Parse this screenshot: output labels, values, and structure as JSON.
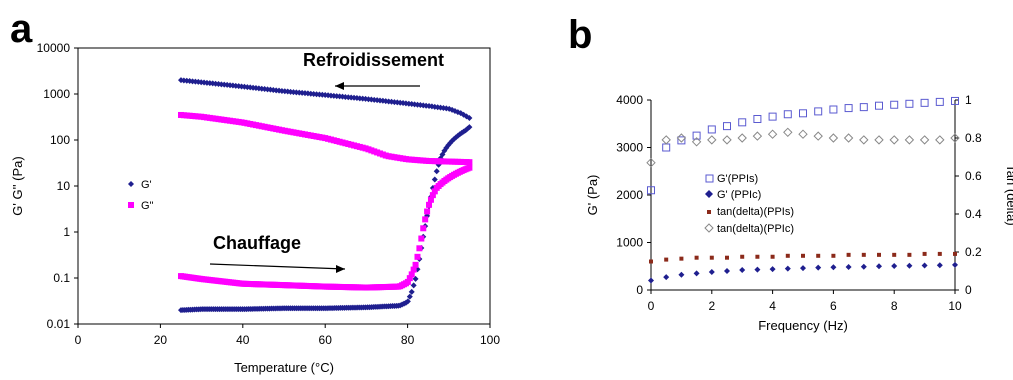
{
  "panel_a_letter": "a",
  "panel_b_letter": "b",
  "chart_data": [
    {
      "type": "scatter",
      "panel": "a",
      "xlabel": "Temperature (°C)",
      "ylabel": "G' G'' (Pa)",
      "xlim": [
        0,
        100
      ],
      "ylim": [
        0.01,
        10000
      ],
      "yscale": "log",
      "xticks": [
        "0",
        "20",
        "40",
        "60",
        "80",
        "100"
      ],
      "yticks": [
        "0.01",
        "0.1",
        "1",
        "10",
        "100",
        "1000",
        "10000"
      ],
      "legend_position": "left",
      "annotations": {
        "cooling": "Refroidissement",
        "heating": "Chauffage"
      },
      "series": [
        {
          "name": "G'",
          "color": "#1f1f8f",
          "marker": "diamond",
          "cooling": {
            "x": [
              25,
              30,
              40,
              50,
              60,
              70,
              80,
              85,
              90,
              93,
              95
            ],
            "y": [
              2000,
              1800,
              1450,
              1150,
              950,
              780,
              620,
              550,
              480,
              380,
              300
            ]
          },
          "heating": {
            "x": [
              25,
              30,
              40,
              50,
              60,
              70,
              78,
              80,
              81,
              82,
              83,
              84,
              85,
              86,
              87,
              88,
              89,
              90,
              91,
              92,
              93,
              94,
              95
            ],
            "y": [
              0.02,
              0.021,
              0.021,
              0.022,
              0.022,
              0.023,
              0.025,
              0.03,
              0.05,
              0.1,
              0.3,
              1,
              3,
              8,
              20,
              40,
              60,
              80,
              100,
              120,
              140,
              160,
              190
            ]
          }
        },
        {
          "name": "G\"",
          "color": "#ff00ff",
          "marker": "square",
          "cooling": {
            "x": [
              25,
              30,
              40,
              50,
              60,
              70,
              75,
              80,
              85,
              90,
              95
            ],
            "y": [
              350,
              320,
              240,
              160,
              110,
              65,
              45,
              38,
              35,
              34,
              33
            ]
          },
          "heating": {
            "x": [
              25,
              30,
              40,
              50,
              60,
              70,
              78,
              80,
              81,
              82,
              83,
              84,
              85,
              86,
              87,
              88,
              89,
              90,
              91,
              92,
              93,
              94,
              95
            ],
            "y": [
              0.11,
              0.095,
              0.075,
              0.07,
              0.065,
              0.062,
              0.065,
              0.08,
              0.12,
              0.2,
              0.5,
              1.5,
              3.5,
              6,
              9,
              11,
              13,
              15,
              17,
              19,
              21,
              23,
              25
            ]
          }
        }
      ]
    },
    {
      "type": "scatter",
      "panel": "b",
      "xlabel": "Frequency (Hz)",
      "ylabel": "G' (Pa)",
      "y2label": "Tan (delta)",
      "xlim": [
        0,
        10
      ],
      "ylim": [
        0,
        4000
      ],
      "y2lim": [
        0,
        1
      ],
      "xticks": [
        "0",
        "2",
        "4",
        "6",
        "8",
        "10"
      ],
      "yticks": [
        "0",
        "1000",
        "2000",
        "3000",
        "4000"
      ],
      "y2ticks": [
        "0",
        "0.2",
        "0.4",
        "0.6",
        "0.8",
        "1"
      ],
      "legend_position": "center-left",
      "series": [
        {
          "name": "G'(PPIs)",
          "axis": "left",
          "color": "#5a5ad0",
          "marker": "square-open",
          "x": [
            0,
            0.5,
            1,
            1.5,
            2,
            2.5,
            3,
            3.5,
            4,
            4.5,
            5,
            5.5,
            6,
            6.5,
            7,
            7.5,
            8,
            8.5,
            9,
            9.5,
            10
          ],
          "y": [
            2100,
            3000,
            3150,
            3250,
            3380,
            3450,
            3530,
            3600,
            3650,
            3700,
            3720,
            3760,
            3800,
            3830,
            3850,
            3880,
            3900,
            3920,
            3940,
            3960,
            3980
          ]
        },
        {
          "name": "G' (PPIc)",
          "axis": "left",
          "color": "#1f1f8f",
          "marker": "diamond",
          "x": [
            0,
            0.5,
            1,
            1.5,
            2,
            2.5,
            3,
            3.5,
            4,
            4.5,
            5,
            5.5,
            6,
            6.5,
            7,
            7.5,
            8,
            8.5,
            9,
            9.5,
            10
          ],
          "y": [
            200,
            270,
            320,
            350,
            380,
            400,
            420,
            430,
            440,
            450,
            460,
            470,
            480,
            485,
            490,
            500,
            505,
            510,
            515,
            520,
            530
          ]
        },
        {
          "name": "tan(delta)(PPIs)",
          "axis": "right",
          "color": "#8b2a1a",
          "marker": "dot",
          "x": [
            0,
            0.5,
            1,
            1.5,
            2,
            2.5,
            3,
            3.5,
            4,
            4.5,
            5,
            5.5,
            6,
            6.5,
            7,
            7.5,
            8,
            8.5,
            9,
            9.5,
            10
          ],
          "y": [
            0.15,
            0.16,
            0.165,
            0.17,
            0.17,
            0.17,
            0.175,
            0.175,
            0.175,
            0.18,
            0.18,
            0.18,
            0.18,
            0.185,
            0.185,
            0.185,
            0.185,
            0.185,
            0.19,
            0.19,
            0.19
          ]
        },
        {
          "name": "tan(delta)(PPIc)",
          "axis": "right",
          "color": "#888888",
          "marker": "diamond-open",
          "x": [
            0,
            0.5,
            1,
            1.5,
            2,
            2.5,
            3,
            3.5,
            4,
            4.5,
            5,
            5.5,
            6,
            6.5,
            7,
            7.5,
            8,
            8.5,
            9,
            9.5,
            10
          ],
          "y": [
            0.67,
            0.79,
            0.8,
            0.78,
            0.79,
            0.79,
            0.8,
            0.81,
            0.82,
            0.83,
            0.82,
            0.81,
            0.8,
            0.8,
            0.79,
            0.79,
            0.79,
            0.79,
            0.79,
            0.79,
            0.8
          ]
        }
      ]
    }
  ]
}
